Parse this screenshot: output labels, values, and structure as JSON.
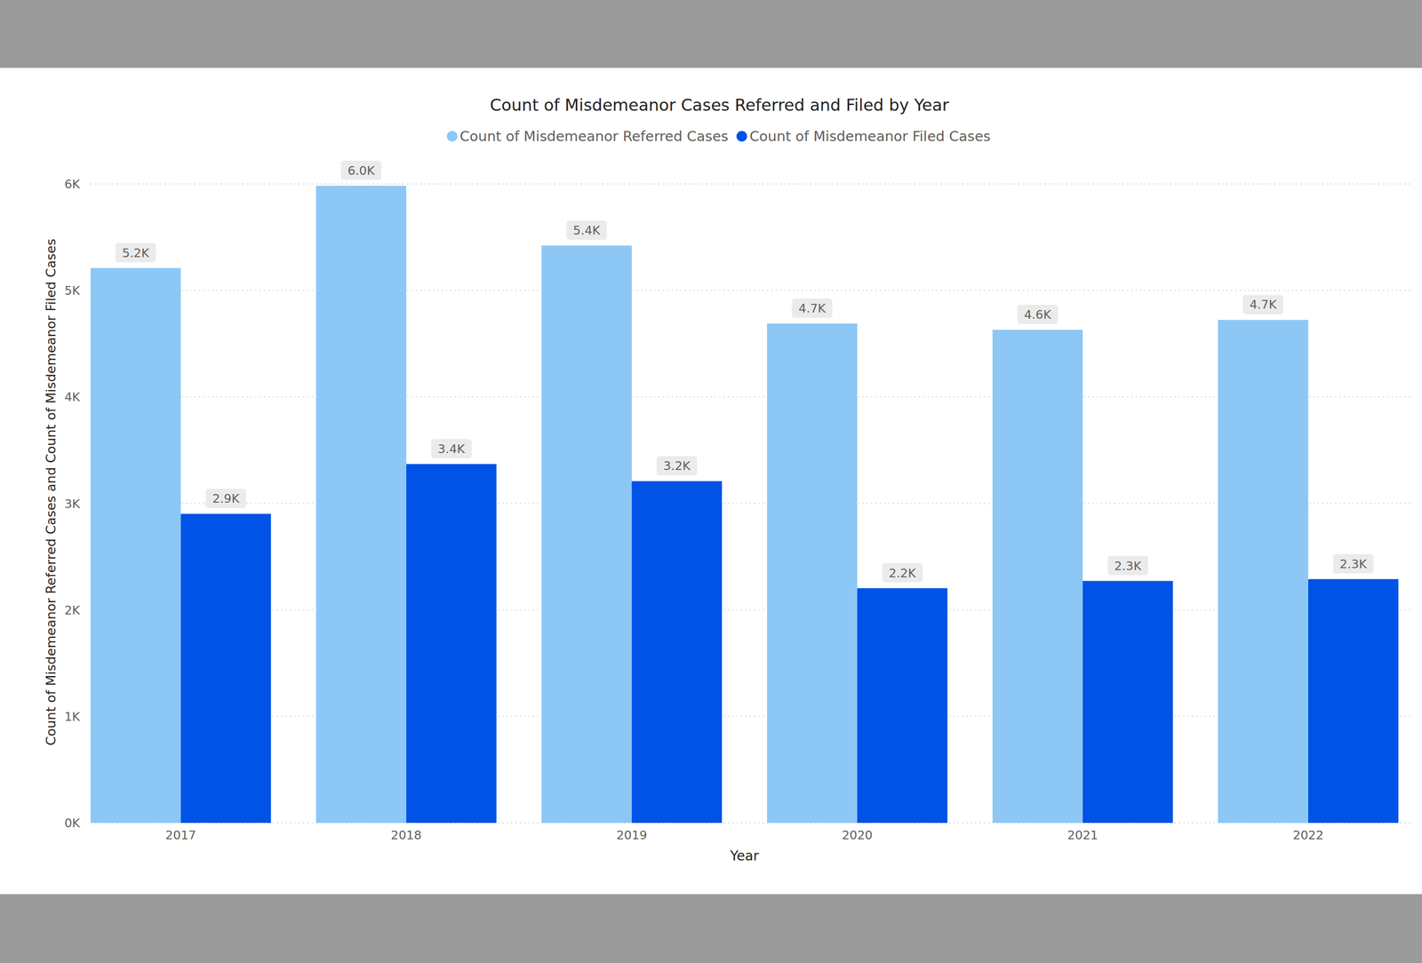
{
  "chart_data": {
    "type": "bar",
    "title": "Count of Misdemeanor Cases Referred and Filed by Year",
    "x_label": "Year",
    "y_label": "Count of Misdemeanor Referred Cases and Count of Misdemeanor Filed Cases",
    "categories": [
      "2017",
      "2018",
      "2019",
      "2020",
      "2021",
      "2022"
    ],
    "series": [
      {
        "name": "Count of Misdemeanor Referred Cases",
        "color": "#8dc7f5",
        "values": [
          5210,
          5983,
          5421,
          4689,
          4630,
          4723
        ],
        "value_labels": [
          "5.2K",
          "6.0K",
          "5.4K",
          "4.7K",
          "4.6K",
          "4.7K"
        ]
      },
      {
        "name": "Count of Misdemeanor Filed Cases",
        "color": "#0053e6",
        "values": [
          2902,
          3370,
          3209,
          2204,
          2272,
          2289
        ],
        "value_labels": [
          "2.9K",
          "3.4K",
          "3.2K",
          "2.2K",
          "2.3K",
          "2.3K"
        ]
      }
    ],
    "ylim": [
      0,
      6000
    ],
    "yticks": [
      {
        "value": 0,
        "label": "0K"
      },
      {
        "value": 1000,
        "label": "1K"
      },
      {
        "value": 2000,
        "label": "2K"
      },
      {
        "value": 3000,
        "label": "3K"
      },
      {
        "value": 4000,
        "label": "4K"
      },
      {
        "value": 5000,
        "label": "5K"
      },
      {
        "value": 6000,
        "label": "6K"
      }
    ],
    "grid": true,
    "data_labels": true,
    "legend": "top"
  }
}
